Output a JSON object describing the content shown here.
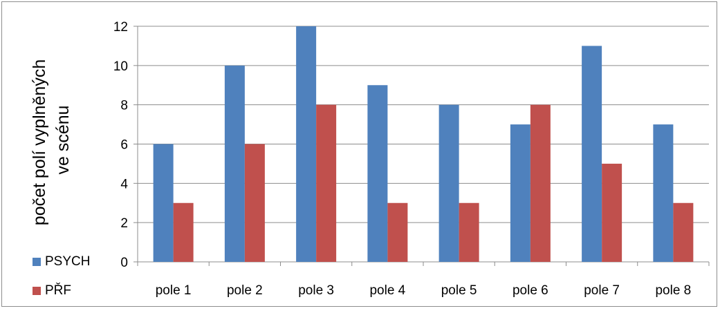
{
  "chart_data": {
    "type": "bar",
    "categories": [
      "pole 1",
      "pole 2",
      "pole 3",
      "pole 4",
      "pole 5",
      "pole 6",
      "pole 7",
      "pole 8"
    ],
    "series": [
      {
        "name": "PSYCH",
        "color": "#4f81bd",
        "values": [
          6,
          10,
          12,
          9,
          8,
          7,
          11,
          7
        ]
      },
      {
        "name": "PŘF",
        "color": "#c0504d",
        "values": [
          3,
          6,
          8,
          3,
          3,
          8,
          5,
          3
        ]
      }
    ],
    "title": "",
    "xlabel": "",
    "ylabel": [
      "počet polí vyplněných",
      "ve scénu"
    ],
    "ylim": [
      0,
      12
    ],
    "yticks": [
      0,
      2,
      4,
      6,
      8,
      10,
      12
    ],
    "grid": true,
    "legend_position": "bottom-left"
  }
}
